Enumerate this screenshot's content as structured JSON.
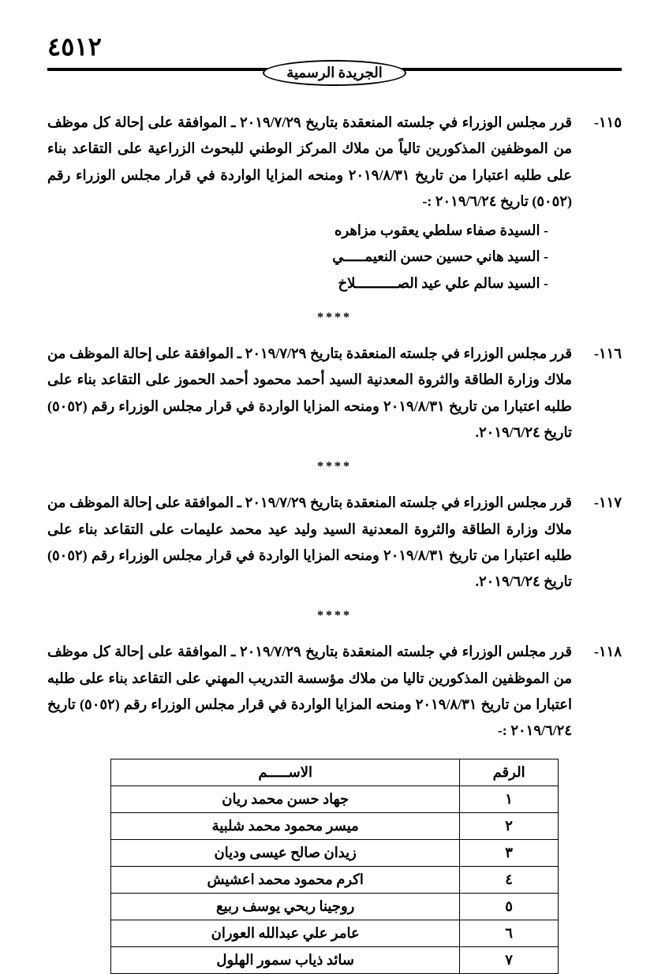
{
  "page_number": "٤٥١٢",
  "header_title": "الجريدة الرسمية",
  "separator": "****",
  "entries": [
    {
      "num": "١١٥-",
      "text": "قرر مجلس الوزراء في جلسته المنعقدة بتاريخ ٢٠١٩/٧/٢٩ ـ الموافقة على إحالة كل موظف من الموظفين المذكورين تالياً من ملاك المركز الوطني للبحوث الزراعية على التقاعد بناء على طلبه اعتبارا من تاريخ ٢٠١٩/٨/٣١ ومنحه المزايا الواردة في قرار مجلس الوزراء رقم (٥٠٥٢) تاريخ ٢٠١٩/٦/٢٤ :-",
      "names": [
        "السيدة صفاء سلطي يعقوب مزاهره",
        "السيد هاني حسين حسن النعيمـــــي",
        "السيد سالم علي عيد الصــــــــــلاخ"
      ]
    },
    {
      "num": "١١٦-",
      "text": "قرر مجلس الوزراء في جلسته المنعقدة بتاريخ ٢٠١٩/٧/٢٩ ـ الموافقة على إحالة الموظف من ملاك وزارة الطاقة والثروة المعدنية السيد أحمد محمود أحمد الحموز على التقاعد بناء على طلبه اعتبارا من تاريخ ٢٠١٩/٨/٣١ ومنحه المزايا الواردة في قرار مجلس الوزراء رقم (٥٠٥٢) تاريخ ٢٠١٩/٦/٢٤."
    },
    {
      "num": "١١٧-",
      "text": "قرر مجلس الوزراء في جلسته المنعقدة بتاريخ ٢٠١٩/٧/٢٩ ـ الموافقة على إحالة الموظف من ملاك وزارة الطاقة والثروة المعدنية السيد وليد عيد محمد عليمات على التقاعد بناء على طلبه اعتبارا من تاريخ ٢٠١٩/٨/٣١ ومنحه المزايا الواردة في قرار مجلس الوزراء رقم (٥٠٥٢) تاريخ ٢٠١٩/٦/٢٤."
    },
    {
      "num": "١١٨-",
      "text": "قرر مجلس الوزراء في جلسته المنعقدة بتاريخ ٢٠١٩/٧/٢٩ ـ الموافقة على إحالة كل موظف من الموظفين المذكورين تاليا من ملاك مؤسسة التدريب المهني على التقاعد بناء على طلبه اعتبارا من تاريخ ٢٠١٩/٨/٣١ ومنحه المزايا الواردة في قرار مجلس الوزراء رقم (٥٠٥٢) تاريخ ٢٠١٩/٦/٢٤ :-"
    }
  ],
  "table": {
    "headers": {
      "num": "الرقم",
      "name": "الاســـــم"
    },
    "rows": [
      {
        "num": "١",
        "name": "جهاد حسن محمد ريان"
      },
      {
        "num": "٢",
        "name": "ميسر محمود محمد شلبية"
      },
      {
        "num": "٣",
        "name": "زيدان صالح عيسى وديان"
      },
      {
        "num": "٤",
        "name": "اكرم محمود محمد اعشيش"
      },
      {
        "num": "٥",
        "name": "روجينا ربحي يوسف ربيع"
      },
      {
        "num": "٦",
        "name": "عامر علي عبدالله العوران"
      },
      {
        "num": "٧",
        "name": "سائد ذياب سمور الهلول"
      }
    ]
  }
}
